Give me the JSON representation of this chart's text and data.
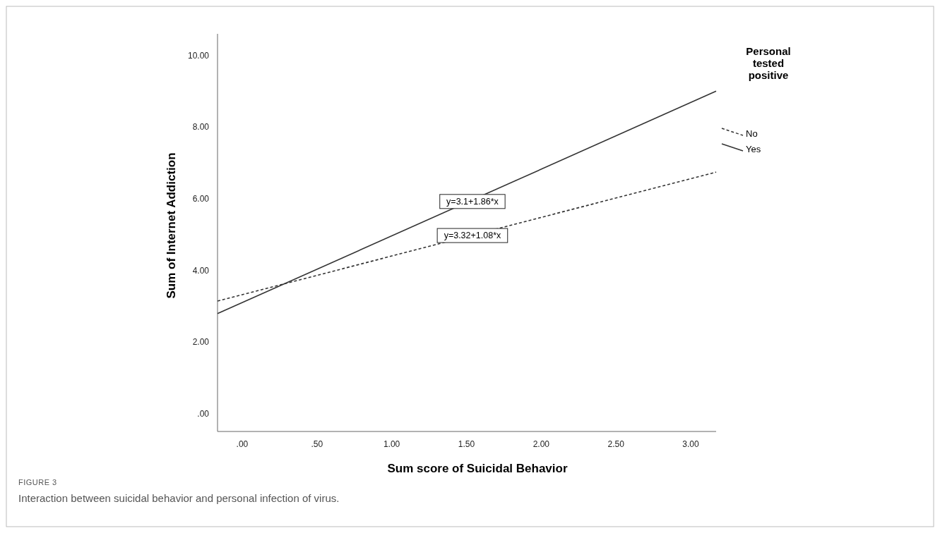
{
  "chart_data": {
    "type": "line",
    "xlabel": "Sum score of Suicidal Behavior",
    "ylabel": "Sum of Internet Addiction",
    "legend_title": "Personal tested positive",
    "legend": "right",
    "marker": "none",
    "grid": false,
    "x": [
      -0.165,
      3.17
    ],
    "xlim": [
      -0.165,
      3.17
    ],
    "ylim": [
      -0.5,
      10.6
    ],
    "xticks": [
      {
        "value": 0,
        "label": ".00"
      },
      {
        "value": 0.5,
        "label": ".50"
      },
      {
        "value": 1,
        "label": "1.00"
      },
      {
        "value": 1.5,
        "label": "1.50"
      },
      {
        "value": 2,
        "label": "2.00"
      },
      {
        "value": 2.5,
        "label": "2.50"
      },
      {
        "value": 3,
        "label": "3.00"
      }
    ],
    "yticks": [
      {
        "value": 0,
        "label": ".00"
      },
      {
        "value": 2,
        "label": "2.00"
      },
      {
        "value": 4,
        "label": "4.00"
      },
      {
        "value": 6,
        "label": "6.00"
      },
      {
        "value": 8,
        "label": "8.00"
      },
      {
        "value": 10,
        "label": "10.00"
      }
    ],
    "series": [
      {
        "name": "No",
        "color": "#333333",
        "line_style": "dashed",
        "values": [
          3.14,
          6.74
        ]
      },
      {
        "name": "Yes",
        "color": "#333333",
        "line_style": "solid",
        "values": [
          2.79,
          9.0
        ]
      }
    ],
    "annotations": [
      {
        "text": "y=3.1+1.86*x",
        "x": 1.54,
        "y": 5.92
      },
      {
        "text": "y=3.32+1.08*x",
        "x": 1.54,
        "y": 4.97
      },
      "FIGURE 3",
      "Interaction between suicidal behavior and personal infection of virus."
    ]
  }
}
